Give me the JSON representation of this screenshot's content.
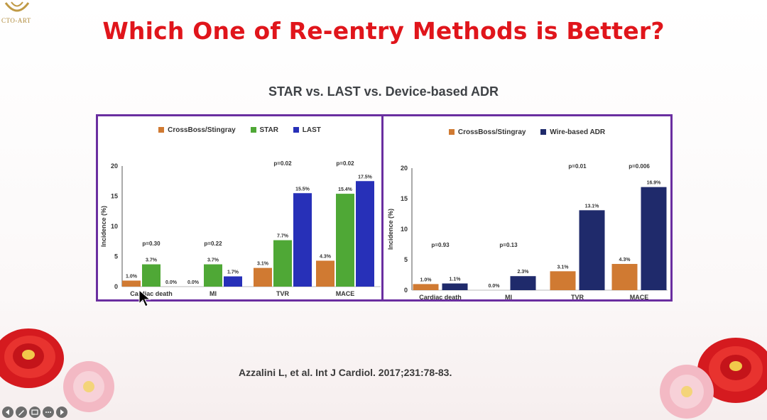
{
  "logo": {
    "text": "CTO-ART"
  },
  "title": "Which One of Re-entry Methods is Better?",
  "subtitle": "STAR vs. LAST vs. Device-based ADR",
  "citation": "Azzalini L, et al. Int J Cardiol. 2017;231:78-83.",
  "colors": {
    "title": "#e0151b",
    "panel_border": "#6a2ea0",
    "crossboss": "#d07a32",
    "star": "#4fa836",
    "last": "#2730b8",
    "wire": "#1f2a6b"
  },
  "chart_data": [
    {
      "type": "bar",
      "legend_position": "top",
      "categories": [
        "Cardiac death",
        "MI",
        "TVR",
        "MACE"
      ],
      "ylabel": "Incidence (%)",
      "ylim": [
        0,
        20
      ],
      "yticks": [
        "0",
        "5",
        "10",
        "15",
        "20"
      ],
      "series": [
        {
          "name": "CrossBoss/Stingray",
          "values": [
            1.0,
            0.0,
            3.1,
            4.3
          ],
          "labels": [
            "1.0%",
            "0.0%",
            "3.1%",
            "4.3%"
          ]
        },
        {
          "name": "STAR",
          "values": [
            3.7,
            3.7,
            7.7,
            15.4
          ],
          "labels": [
            "3.7%",
            "3.7%",
            "7.7%",
            "15.4%"
          ]
        },
        {
          "name": "LAST",
          "values": [
            0.0,
            1.7,
            15.5,
            17.5
          ],
          "labels": [
            "0.0%",
            "1.7%",
            "15.5%",
            "17.5%"
          ]
        }
      ],
      "pvalues": [
        "p=0.30",
        "p=0.22",
        "p=0.02",
        "p=0.02"
      ]
    },
    {
      "type": "bar",
      "legend_position": "top",
      "categories": [
        "Cardiac death",
        "MI",
        "TVR",
        "MACE"
      ],
      "ylabel": "Incidence (%)",
      "ylim": [
        0,
        20
      ],
      "yticks": [
        "0",
        "5",
        "10",
        "15",
        "20"
      ],
      "series": [
        {
          "name": "CrossBoss/Stingray",
          "values": [
            1.0,
            0.0,
            3.1,
            4.3
          ],
          "labels": [
            "1.0%",
            "0.0%",
            "3.1%",
            "4.3%"
          ]
        },
        {
          "name": "Wire-based ADR",
          "values": [
            1.1,
            2.3,
            13.1,
            16.9
          ],
          "labels": [
            "1.1%",
            "2.3%",
            "13.1%",
            "16.9%"
          ]
        }
      ],
      "pvalues": [
        "p=0.93",
        "p=0.13",
        "p=0.01",
        "p=0.006"
      ]
    }
  ],
  "controls": [
    "prev-icon",
    "pen-icon",
    "slides-icon",
    "more-icon",
    "next-icon"
  ]
}
